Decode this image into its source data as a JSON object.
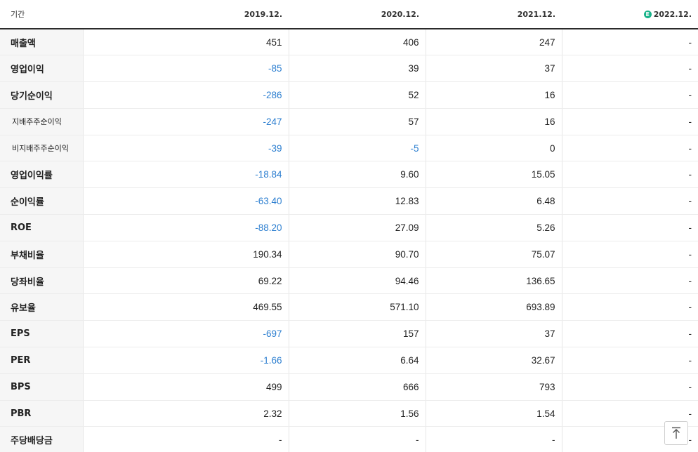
{
  "header": {
    "label": "기간",
    "periods": [
      "2019.12.",
      "2020.12.",
      "2021.12.",
      "2022.12."
    ],
    "estimate_badge": "E"
  },
  "rows": [
    {
      "label": "매출액",
      "values": [
        "451",
        "406",
        "247",
        "-"
      ]
    },
    {
      "label": "영업이익",
      "values": [
        "-85",
        "39",
        "37",
        "-"
      ]
    },
    {
      "label": "당기순이익",
      "values": [
        "-286",
        "52",
        "16",
        "-"
      ]
    },
    {
      "label": "지배주주순이익",
      "values": [
        "-247",
        "57",
        "16",
        "-"
      ]
    },
    {
      "label": "비지배주주순이익",
      "values": [
        "-39",
        "-5",
        "0",
        "-"
      ]
    },
    {
      "label": "영업이익률",
      "values": [
        "-18.84",
        "9.60",
        "15.05",
        "-"
      ]
    },
    {
      "label": "순이익률",
      "values": [
        "-63.40",
        "12.83",
        "6.48",
        "-"
      ]
    },
    {
      "label": "ROE",
      "values": [
        "-88.20",
        "27.09",
        "5.26",
        "-"
      ]
    },
    {
      "label": "부채비율",
      "values": [
        "190.34",
        "90.70",
        "75.07",
        "-"
      ]
    },
    {
      "label": "당좌비율",
      "values": [
        "69.22",
        "94.46",
        "136.65",
        "-"
      ]
    },
    {
      "label": "유보율",
      "values": [
        "469.55",
        "571.10",
        "693.89",
        "-"
      ]
    },
    {
      "label": "EPS",
      "values": [
        "-697",
        "157",
        "37",
        "-"
      ]
    },
    {
      "label": "PER",
      "values": [
        "-1.66",
        "6.64",
        "32.67",
        "-"
      ]
    },
    {
      "label": "BPS",
      "values": [
        "499",
        "666",
        "793",
        "-"
      ]
    },
    {
      "label": "PBR",
      "values": [
        "2.32",
        "1.56",
        "1.54",
        "-"
      ]
    },
    {
      "label": "주당배당금",
      "values": [
        "-",
        "-",
        "-",
        "-"
      ]
    }
  ],
  "colors": {
    "negative": "#2d7fd0",
    "estimate_badge": "#19b38a",
    "row_header_bg": "#f6f6f6"
  },
  "icons": {
    "scroll_top": "arrow-up-to-line-icon"
  }
}
